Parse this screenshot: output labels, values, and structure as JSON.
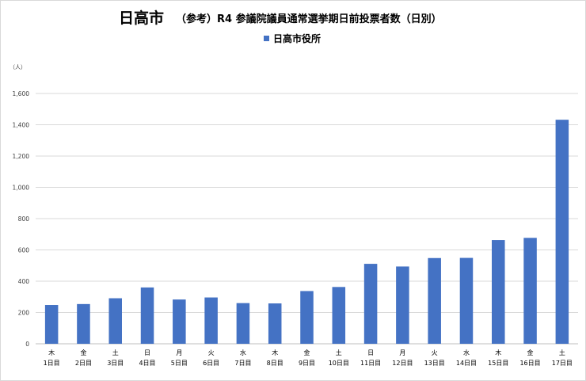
{
  "header": {
    "title_main": "日高市",
    "title_sub": "（参考）R4 参議院議員通常選挙期日前投票者数（日別）"
  },
  "legend": {
    "label": "日高市役所",
    "color": "#4472c4"
  },
  "unit_label": "（人）",
  "chart_data": {
    "type": "bar",
    "title": "日高市　（参考）R4 参議院議員通常選挙期日前投票者数（日別）",
    "xlabel": "",
    "ylabel": "（人）",
    "ylim": [
      0,
      1600
    ],
    "ytick_step": 200,
    "ytick_labels": [
      "0",
      "200",
      "400",
      "600",
      "800",
      "1,000",
      "1,200",
      "1,400",
      "1,600"
    ],
    "grid": true,
    "legend_position": "top-center",
    "categories_weekday": [
      "木",
      "金",
      "土",
      "日",
      "月",
      "火",
      "水",
      "木",
      "金",
      "土",
      "日",
      "月",
      "火",
      "水",
      "木",
      "金",
      "土"
    ],
    "categories_day": [
      "1日目",
      "2日目",
      "3日目",
      "4日目",
      "5日目",
      "6日目",
      "7日目",
      "8日目",
      "9日目",
      "10日目",
      "11日目",
      "12日目",
      "13日目",
      "14日目",
      "15日目",
      "16日目",
      "17日目"
    ],
    "series": [
      {
        "name": "日高市役所",
        "color": "#4472c4",
        "values": [
          248,
          254,
          291,
          360,
          283,
          296,
          260,
          258,
          337,
          363,
          511,
          494,
          548,
          549,
          663,
          677,
          1432
        ]
      }
    ]
  }
}
